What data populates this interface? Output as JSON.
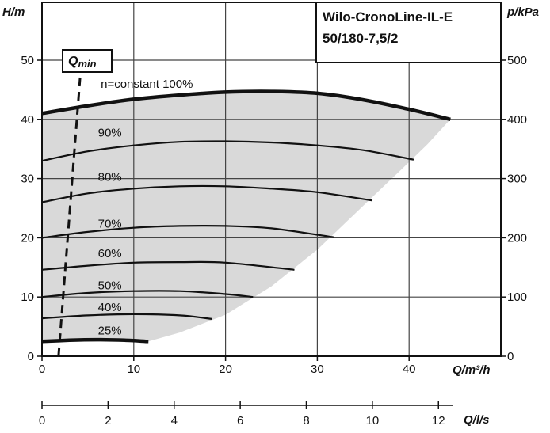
{
  "chart_data": {
    "type": "line",
    "title_line1": "Wilo-CronoLine-IL-E",
    "title_line2": "50/180-7,5/2",
    "y_left_label": "H/m",
    "y_right_label": "p/kPa",
    "x_label": "Q/m³/h",
    "x2_label": "Q/l/s",
    "xlim": [
      0,
      50
    ],
    "ylim": [
      0,
      50
    ],
    "y_ticks": [
      0,
      10,
      20,
      30,
      40,
      50
    ],
    "x_ticks": [
      0,
      10,
      20,
      30,
      40
    ],
    "y2_ticks": [
      0,
      100,
      200,
      300,
      400,
      500
    ],
    "x2_ticks": [
      0,
      2,
      4,
      6,
      8,
      10,
      12
    ],
    "qmin_label": "Q",
    "qmin_sub": "min",
    "qmin_line": [
      [
        1.8,
        0
      ],
      [
        4.3,
        50
      ]
    ],
    "operating_region": [
      [
        0,
        41
      ],
      [
        5,
        42.3
      ],
      [
        10,
        43.4
      ],
      [
        15,
        44.1
      ],
      [
        20,
        44.6
      ],
      [
        25,
        44.7
      ],
      [
        30,
        44.4
      ],
      [
        35,
        43.3
      ],
      [
        40,
        41.7
      ],
      [
        44.5,
        40
      ],
      [
        42,
        35.8
      ],
      [
        39,
        31.3
      ],
      [
        35,
        25.4
      ],
      [
        30,
        18
      ],
      [
        25,
        11.8
      ],
      [
        20,
        7
      ],
      [
        15,
        4
      ],
      [
        11.6,
        2.5
      ],
      [
        0,
        2.5
      ]
    ],
    "series": [
      {
        "name": "n=constant 100%",
        "bold": true,
        "label_pos": [
          6.4,
          45.3
        ],
        "x": [
          0,
          5,
          10,
          15,
          20,
          25,
          30,
          35,
          40,
          44.5
        ],
        "values": [
          41,
          42.3,
          43.4,
          44.1,
          44.6,
          44.7,
          44.4,
          43.3,
          41.7,
          40
        ]
      },
      {
        "name": "90%",
        "bold": false,
        "label_pos": [
          6.1,
          37.1
        ],
        "x": [
          0,
          5,
          10,
          15,
          20,
          25,
          30,
          35,
          40.5
        ],
        "values": [
          33,
          34.6,
          35.6,
          36.2,
          36.3,
          36.1,
          35.6,
          34.8,
          33.2
        ]
      },
      {
        "name": "80%",
        "bold": false,
        "label_pos": [
          6.1,
          29.6
        ],
        "x": [
          0,
          5,
          10,
          15,
          20,
          25,
          30,
          36
        ],
        "values": [
          26,
          27.5,
          28.3,
          28.7,
          28.7,
          28.3,
          27.7,
          26.3
        ]
      },
      {
        "name": "70%",
        "bold": false,
        "label_pos": [
          6.1,
          21.7
        ],
        "x": [
          0,
          5,
          10,
          15,
          20,
          25,
          31.8
        ],
        "values": [
          20,
          21,
          21.7,
          22,
          22,
          21.6,
          20.1
        ]
      },
      {
        "name": "60%",
        "bold": false,
        "label_pos": [
          6.1,
          16.7
        ],
        "x": [
          0,
          5,
          10,
          15,
          20,
          27.5
        ],
        "values": [
          14.6,
          15.3,
          15.8,
          15.9,
          15.8,
          14.6
        ]
      },
      {
        "name": "50%",
        "bold": false,
        "label_pos": [
          6.1,
          11.3
        ],
        "x": [
          0,
          5,
          10,
          15,
          20,
          23
        ],
        "values": [
          10,
          10.7,
          11,
          11,
          10.5,
          10
        ]
      },
      {
        "name": "40%",
        "bold": false,
        "label_pos": [
          6.1,
          7.6
        ],
        "x": [
          0,
          5,
          10,
          15,
          18.5
        ],
        "values": [
          6.4,
          6.9,
          7.1,
          6.9,
          6.3
        ]
      },
      {
        "name": "25%",
        "bold": true,
        "label_pos": [
          6.1,
          3.7
        ],
        "x": [
          0,
          3,
          6,
          9,
          11.6
        ],
        "values": [
          2.5,
          2.7,
          2.8,
          2.7,
          2.5
        ]
      }
    ]
  }
}
